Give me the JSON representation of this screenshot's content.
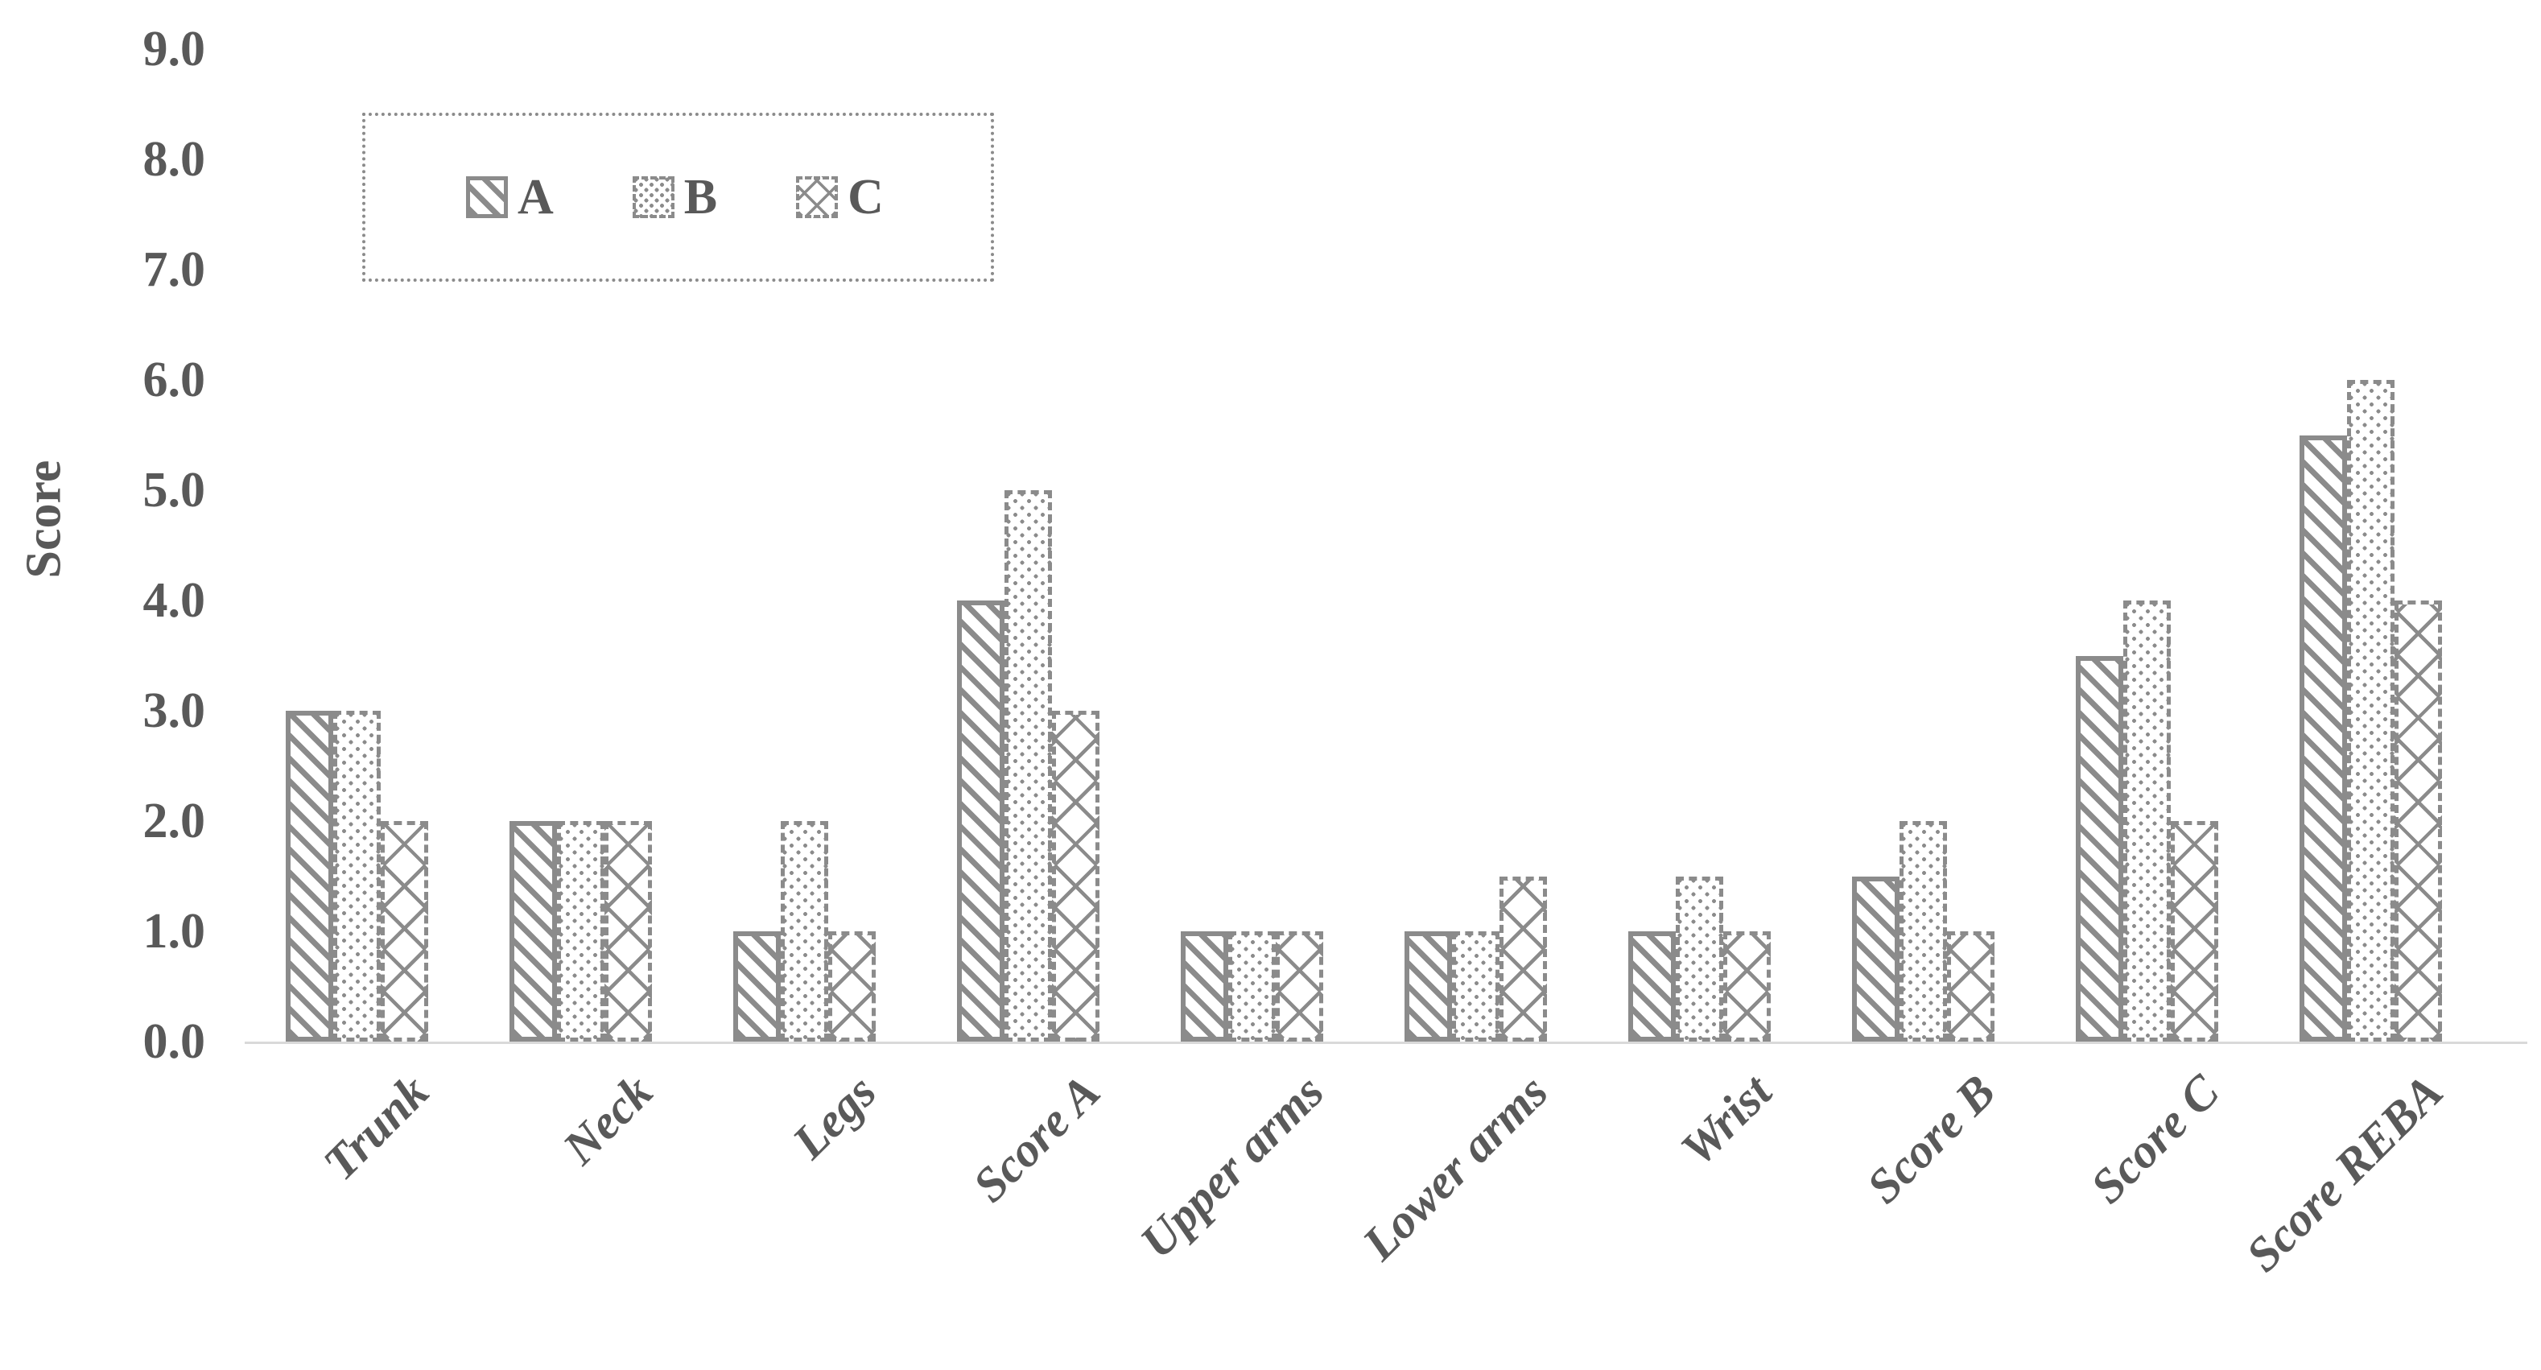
{
  "chart_data": {
    "type": "bar",
    "title": "",
    "xlabel": "",
    "ylabel": "Score",
    "ylim": [
      0,
      9
    ],
    "ytick_step": 1,
    "ytick_labels": [
      "0.0",
      "1.0",
      "2.0",
      "3.0",
      "4.0",
      "5.0",
      "6.0",
      "7.0",
      "8.0",
      "9.0"
    ],
    "grid": false,
    "legend": {
      "position": "top-left",
      "border_style": "dotted",
      "entries": [
        "A",
        "B",
        "C"
      ]
    },
    "categories": [
      "Trunk",
      "Neck",
      "Legs",
      "Score A",
      "Upper arms",
      "Lower arms",
      "Wrist",
      "Score B",
      "Score C",
      "Score REBA"
    ],
    "series": [
      {
        "name": "A",
        "pattern": "diagonal",
        "values": [
          3.0,
          2.0,
          1.0,
          4.0,
          1.0,
          1.0,
          1.0,
          1.5,
          3.5,
          5.5
        ]
      },
      {
        "name": "B",
        "pattern": "dots",
        "values": [
          3.0,
          2.0,
          2.0,
          5.0,
          1.0,
          1.0,
          1.5,
          2.0,
          4.0,
          6.0
        ]
      },
      {
        "name": "C",
        "pattern": "crosshatch",
        "values": [
          2.0,
          2.0,
          1.0,
          3.0,
          1.0,
          1.5,
          1.0,
          1.0,
          2.0,
          4.0
        ]
      }
    ],
    "colors": {
      "pattern_gray": "#8b8b8b",
      "text_gray": "#595959",
      "axis_line_gray": "#d9d9d9",
      "background": "#ffffff"
    }
  }
}
